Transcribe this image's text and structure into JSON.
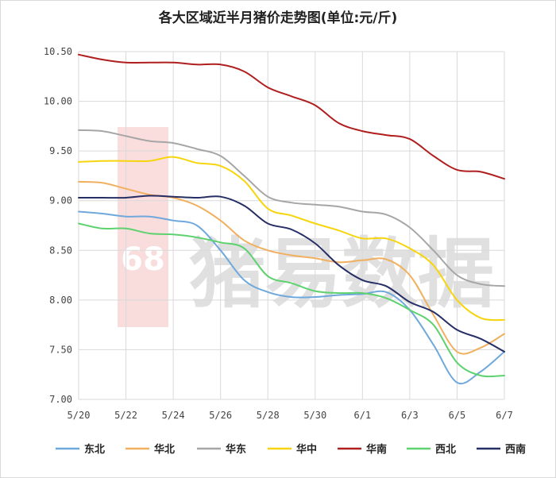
{
  "chart_data": {
    "type": "line",
    "title": "各大区域近半月猪价走势图(单位:元/斤)",
    "xlabel": "",
    "ylabel": "",
    "x": [
      "5/20",
      "5/21",
      "5/22",
      "5/23",
      "5/24",
      "5/25",
      "5/26",
      "5/27",
      "5/28",
      "5/29",
      "5/30",
      "5/31",
      "6/1",
      "6/2",
      "6/3",
      "6/4",
      "6/5",
      "6/6",
      "6/7"
    ],
    "x_tick_labels": [
      "5/20",
      "5/22",
      "5/24",
      "5/26",
      "5/28",
      "5/30",
      "6/1",
      "6/3",
      "6/5",
      "6/7"
    ],
    "y_tick_labels": [
      "7.00",
      "7.50",
      "8.00",
      "8.50",
      "9.00",
      "9.50",
      "10.00",
      "10.50"
    ],
    "ylim": [
      7.0,
      10.5
    ],
    "grid": "both",
    "legend_position": "bottom",
    "series": [
      {
        "name": "东北",
        "color": "#6FA8DC",
        "values": [
          8.89,
          8.87,
          8.84,
          8.84,
          8.8,
          8.75,
          8.5,
          8.2,
          8.08,
          8.03,
          8.03,
          8.05,
          8.06,
          8.08,
          7.9,
          7.55,
          7.17,
          7.28,
          7.48
        ]
      },
      {
        "name": "华北",
        "color": "#F0B060",
        "values": [
          9.19,
          9.18,
          9.12,
          9.06,
          9.03,
          8.95,
          8.8,
          8.6,
          8.5,
          8.45,
          8.42,
          8.38,
          8.4,
          8.41,
          8.25,
          7.85,
          7.48,
          7.52,
          7.66
        ]
      },
      {
        "name": "华东",
        "color": "#A6A6A6",
        "values": [
          9.71,
          9.7,
          9.65,
          9.6,
          9.58,
          9.52,
          9.45,
          9.25,
          9.04,
          8.98,
          8.96,
          8.94,
          8.89,
          8.86,
          8.73,
          8.5,
          8.25,
          8.16,
          8.14
        ]
      },
      {
        "name": "华中",
        "color": "#F6D50E",
        "values": [
          9.39,
          9.4,
          9.4,
          9.4,
          9.44,
          9.38,
          9.35,
          9.2,
          8.92,
          8.85,
          8.77,
          8.7,
          8.62,
          8.62,
          8.52,
          8.35,
          8.0,
          7.82,
          7.8
        ]
      },
      {
        "name": "华南",
        "color": "#B01E1E",
        "values": [
          10.47,
          10.42,
          10.39,
          10.39,
          10.39,
          10.37,
          10.37,
          10.3,
          10.14,
          10.05,
          9.96,
          9.78,
          9.7,
          9.66,
          9.62,
          9.45,
          9.31,
          9.29,
          9.22
        ]
      },
      {
        "name": "西北",
        "color": "#5ED26E",
        "values": [
          8.77,
          8.72,
          8.72,
          8.67,
          8.66,
          8.63,
          8.58,
          8.52,
          8.24,
          8.17,
          8.09,
          8.07,
          8.07,
          8.02,
          7.9,
          7.75,
          7.37,
          7.24,
          7.24
        ]
      },
      {
        "name": "西南",
        "color": "#262E66",
        "values": [
          9.03,
          9.03,
          9.03,
          9.05,
          9.04,
          9.03,
          9.04,
          8.95,
          8.77,
          8.71,
          8.57,
          8.35,
          8.2,
          8.14,
          7.98,
          7.88,
          7.7,
          7.61,
          7.48
        ]
      }
    ]
  },
  "watermark": {
    "logo_char": "68",
    "text": "猪易数据"
  }
}
